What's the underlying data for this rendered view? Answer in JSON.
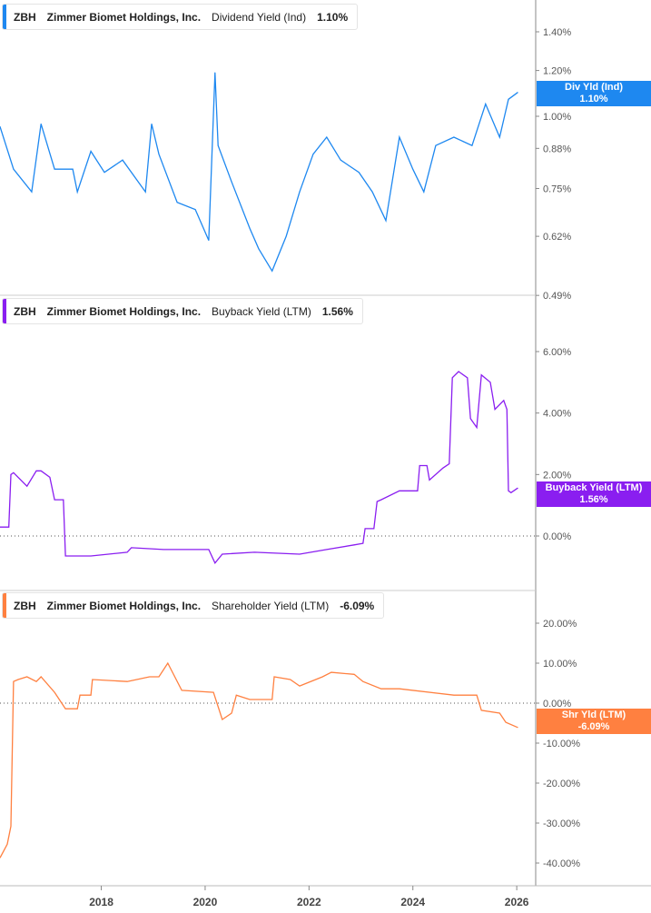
{
  "chart_data": [
    {
      "type": "line",
      "ticker": "ZBH",
      "company": "Zimmer Biomet Holdings, Inc.",
      "metric": "Dividend Yield (Ind)",
      "current": "1.10%",
      "tag_label": "Div Yld (Ind)",
      "color": "#1e88f0",
      "scale": "log",
      "yticks": [
        "1.40%",
        "1.20%",
        "1.00%",
        "0.88%",
        "0.75%",
        "0.62%",
        "0.49%"
      ],
      "ytick_values": [
        1.4,
        1.2,
        1.0,
        0.88,
        0.75,
        0.62,
        0.49
      ],
      "points": [
        [
          2016.05,
          0.96
        ],
        [
          2016.31,
          0.81
        ],
        [
          2016.66,
          0.74
        ],
        [
          2016.84,
          0.97
        ],
        [
          2017.1,
          0.81
        ],
        [
          2017.45,
          0.81
        ],
        [
          2017.54,
          0.74
        ],
        [
          2017.8,
          0.87
        ],
        [
          2018.06,
          0.8
        ],
        [
          2018.41,
          0.84
        ],
        [
          2018.85,
          0.74
        ],
        [
          2018.97,
          0.97
        ],
        [
          2019.11,
          0.86
        ],
        [
          2019.46,
          0.71
        ],
        [
          2019.81,
          0.69
        ],
        [
          2020.07,
          0.61
        ],
        [
          2020.19,
          1.19
        ],
        [
          2020.25,
          0.89
        ],
        [
          2020.51,
          0.77
        ],
        [
          2020.86,
          0.64
        ],
        [
          2021.03,
          0.59
        ],
        [
          2021.29,
          0.54
        ],
        [
          2021.56,
          0.62
        ],
        [
          2021.82,
          0.74
        ],
        [
          2022.08,
          0.86
        ],
        [
          2022.34,
          0.92
        ],
        [
          2022.61,
          0.84
        ],
        [
          2022.96,
          0.8
        ],
        [
          2023.22,
          0.74
        ],
        [
          2023.48,
          0.66
        ],
        [
          2023.74,
          0.92
        ],
        [
          2024.0,
          0.81
        ],
        [
          2024.21,
          0.74
        ],
        [
          2024.44,
          0.89
        ],
        [
          2024.79,
          0.92
        ],
        [
          2025.14,
          0.89
        ],
        [
          2025.4,
          1.05
        ],
        [
          2025.67,
          0.92
        ],
        [
          2025.84,
          1.07
        ],
        [
          2026.02,
          1.1
        ]
      ]
    },
    {
      "type": "line",
      "ticker": "ZBH",
      "company": "Zimmer Biomet Holdings, Inc.",
      "metric": "Buyback Yield (LTM)",
      "current": "1.56%",
      "tag_label": "Buyback Yield (LTM)",
      "color": "#8a1ef0",
      "scale": "linear",
      "yticks": [
        "6.00%",
        "4.00%",
        "2.00%",
        "0.00%"
      ],
      "ytick_values": [
        6,
        4,
        2,
        0
      ],
      "points": [
        [
          2016.05,
          0.29
        ],
        [
          2016.22,
          0.29
        ],
        [
          2016.26,
          2.0
        ],
        [
          2016.31,
          2.06
        ],
        [
          2016.57,
          1.62
        ],
        [
          2016.75,
          2.12
        ],
        [
          2016.84,
          2.12
        ],
        [
          2017.01,
          1.91
        ],
        [
          2017.1,
          1.18
        ],
        [
          2017.27,
          1.18
        ],
        [
          2017.31,
          -0.65
        ],
        [
          2017.8,
          -0.65
        ],
        [
          2018.5,
          -0.53
        ],
        [
          2018.58,
          -0.38
        ],
        [
          2019.2,
          -0.44
        ],
        [
          2020.07,
          -0.44
        ],
        [
          2020.19,
          -0.88
        ],
        [
          2020.33,
          -0.59
        ],
        [
          2020.95,
          -0.53
        ],
        [
          2021.82,
          -0.59
        ],
        [
          2022.34,
          -0.44
        ],
        [
          2022.87,
          -0.29
        ],
        [
          2023.04,
          -0.24
        ],
        [
          2023.08,
          0.24
        ],
        [
          2023.25,
          0.24
        ],
        [
          2023.31,
          1.12
        ],
        [
          2023.39,
          1.18
        ],
        [
          2023.74,
          1.47
        ],
        [
          2024.09,
          1.47
        ],
        [
          2024.13,
          2.29
        ],
        [
          2024.27,
          2.29
        ],
        [
          2024.32,
          1.82
        ],
        [
          2024.58,
          2.21
        ],
        [
          2024.7,
          2.35
        ],
        [
          2024.76,
          5.15
        ],
        [
          2024.88,
          5.35
        ],
        [
          2025.05,
          5.15
        ],
        [
          2025.11,
          3.82
        ],
        [
          2025.23,
          3.53
        ],
        [
          2025.32,
          5.24
        ],
        [
          2025.49,
          5.0
        ],
        [
          2025.58,
          4.12
        ],
        [
          2025.75,
          4.41
        ],
        [
          2025.81,
          4.12
        ],
        [
          2025.84,
          1.47
        ],
        [
          2025.89,
          1.41
        ],
        [
          2026.02,
          1.56
        ]
      ]
    },
    {
      "type": "line",
      "ticker": "ZBH",
      "company": "Zimmer Biomet Holdings, Inc.",
      "metric": "Shareholder Yield (LTM)",
      "current": "-6.09%",
      "tag_label": "Shr Yld (LTM)",
      "color": "#ff8040",
      "scale": "linear",
      "yticks": [
        "20.00%",
        "10.00%",
        "0.00%",
        "-10.00%",
        "-20.00%",
        "-30.00%",
        "-40.00%"
      ],
      "ytick_values": [
        20,
        10,
        0,
        -10,
        -20,
        -30,
        -40
      ],
      "points": [
        [
          2016.05,
          -38.7
        ],
        [
          2016.19,
          -35.3
        ],
        [
          2016.26,
          -30.8
        ],
        [
          2016.31,
          5.4
        ],
        [
          2016.4,
          5.9
        ],
        [
          2016.57,
          6.6
        ],
        [
          2016.75,
          5.4
        ],
        [
          2016.84,
          6.6
        ],
        [
          2017.1,
          2.7
        ],
        [
          2017.31,
          -1.4
        ],
        [
          2017.54,
          -1.4
        ],
        [
          2017.59,
          2.0
        ],
        [
          2017.8,
          2.0
        ],
        [
          2017.83,
          5.9
        ],
        [
          2018.5,
          5.4
        ],
        [
          2018.93,
          6.6
        ],
        [
          2019.11,
          6.6
        ],
        [
          2019.28,
          10.0
        ],
        [
          2019.55,
          3.2
        ],
        [
          2020.16,
          2.7
        ],
        [
          2020.33,
          -4.1
        ],
        [
          2020.51,
          -2.5
        ],
        [
          2020.6,
          2.0
        ],
        [
          2020.86,
          0.9
        ],
        [
          2021.29,
          0.9
        ],
        [
          2021.33,
          6.6
        ],
        [
          2021.64,
          5.9
        ],
        [
          2021.82,
          4.3
        ],
        [
          2022.26,
          6.6
        ],
        [
          2022.43,
          7.7
        ],
        [
          2022.87,
          7.2
        ],
        [
          2023.04,
          5.4
        ],
        [
          2023.39,
          3.6
        ],
        [
          2023.74,
          3.6
        ],
        [
          2024.79,
          2.0
        ],
        [
          2025.23,
          2.0
        ],
        [
          2025.32,
          -1.8
        ],
        [
          2025.67,
          -2.5
        ],
        [
          2025.79,
          -4.8
        ],
        [
          2026.02,
          -6.09
        ]
      ]
    }
  ],
  "x_axis": {
    "ticks": [
      "2018",
      "2020",
      "2022",
      "2024",
      "2026"
    ],
    "tick_values": [
      2018,
      2020,
      2022,
      2024,
      2026
    ],
    "xlim": [
      2016.05,
      2026.6
    ]
  }
}
